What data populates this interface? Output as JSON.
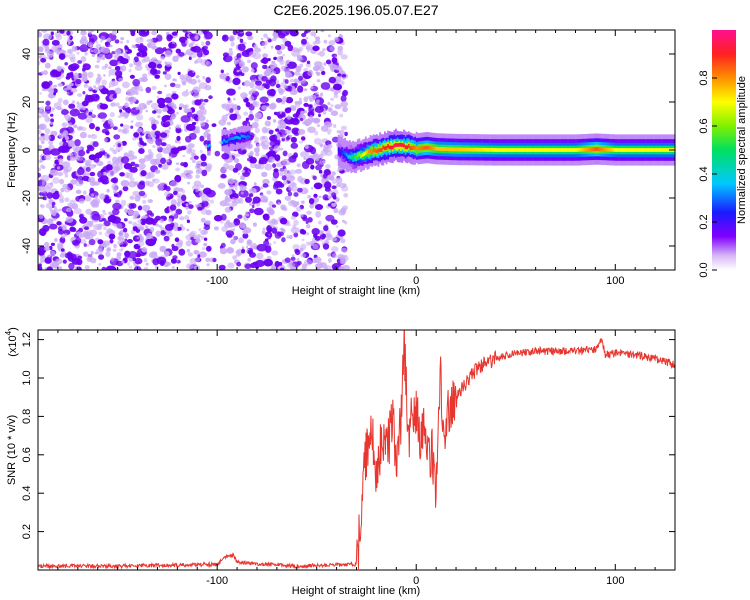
{
  "title": "C2E6.2025.196.05.07.E27",
  "colors": {
    "spectrum_scatter": "#6a00f0",
    "spectrum_scatter_light": "#c9a8f5",
    "snr_line": "#e8352e",
    "axis": "#000000"
  },
  "chart_data": [
    {
      "type": "heatmap",
      "xlabel": "Height of straight line (km)",
      "ylabel": "Frequency (Hz)",
      "xlim": [
        -190,
        130
      ],
      "ylim": [
        -50,
        50
      ],
      "xticks": [
        -100,
        0,
        100
      ],
      "xtick_labels": [
        "-100",
        "0",
        "100"
      ],
      "yticks": [
        -40,
        -20,
        0,
        20,
        40
      ],
      "ytick_labels": [
        "-40",
        "-20",
        "0",
        "20",
        "40"
      ],
      "colorbar": {
        "label": "Normalized spectral amplitude",
        "range": [
          0,
          1
        ],
        "ticks": [
          0.0,
          0.2,
          0.4,
          0.6,
          0.8
        ],
        "tick_labels": [
          "0.0",
          "0.2",
          "0.4",
          "0.6",
          "0.8"
        ],
        "colormap": "rainbow"
      },
      "noise_region_x": [
        -190,
        -35
      ],
      "gap_x": [
        -104,
        -98
      ],
      "signal_ridge": {
        "x": [
          -105,
          -100,
          -95,
          -90,
          -85,
          -40,
          -36,
          -32,
          -28,
          -24,
          -20,
          -15,
          -10,
          -5,
          0,
          5,
          10,
          20,
          40,
          60,
          80,
          90,
          100,
          120,
          130
        ],
        "y": [
          2,
          3,
          4,
          5,
          6,
          0,
          -2,
          -3,
          -2,
          -1,
          0,
          1,
          2,
          1.5,
          0.5,
          1,
          0.5,
          0.2,
          0,
          0,
          0,
          0.4,
          0,
          0,
          0
        ],
        "amplitude": [
          0.35,
          0.4,
          0.3,
          0.35,
          0.3,
          0.2,
          0.3,
          0.5,
          0.65,
          0.8,
          0.85,
          0.9,
          0.95,
          0.9,
          0.8,
          0.85,
          0.75,
          0.75,
          0.7,
          0.7,
          0.7,
          0.85,
          0.7,
          0.7,
          0.7
        ]
      }
    },
    {
      "type": "line",
      "xlabel": "Height of straight line (km)",
      "ylabel": "SNR (10 * v/v)",
      "y_multiplier_label": "(x10",
      "y_multiplier_exp": "4",
      "y_multiplier_close": ")",
      "xlim": [
        -190,
        130
      ],
      "ylim": [
        0,
        1.25
      ],
      "xticks": [
        -100,
        0,
        100
      ],
      "xtick_labels": [
        "-100",
        "0",
        "100"
      ],
      "yticks": [
        0.2,
        0.4,
        0.6,
        0.8,
        1.0,
        1.2
      ],
      "ytick_labels": [
        "0.2",
        "0.4",
        "0.6",
        "0.8",
        "1.0",
        "1.2"
      ],
      "series": [
        {
          "x": [
            -190,
            -150,
            -100,
            -95,
            -92,
            -90,
            -60,
            -30,
            -28,
            -26,
            -24,
            -22,
            -20,
            -18,
            -16,
            -14,
            -12,
            -10,
            -8,
            -6,
            -4,
            -2,
            0,
            2,
            4,
            6,
            8,
            10,
            12,
            14,
            16,
            18,
            20,
            25,
            30,
            35,
            40,
            50,
            60,
            70,
            80,
            90,
            93,
            95,
            100,
            110,
            120,
            130
          ],
          "y": [
            0.02,
            0.02,
            0.03,
            0.07,
            0.08,
            0.04,
            0.02,
            0.03,
            0.25,
            0.55,
            0.68,
            0.72,
            0.45,
            0.62,
            0.7,
            0.66,
            0.78,
            0.6,
            0.72,
            1.18,
            0.7,
            0.8,
            0.85,
            0.7,
            0.8,
            0.55,
            0.6,
            0.4,
            1.05,
            0.72,
            0.82,
            0.86,
            0.88,
            0.98,
            1.04,
            1.08,
            1.1,
            1.13,
            1.14,
            1.14,
            1.14,
            1.15,
            1.2,
            1.12,
            1.13,
            1.12,
            1.1,
            1.07
          ]
        }
      ]
    }
  ]
}
